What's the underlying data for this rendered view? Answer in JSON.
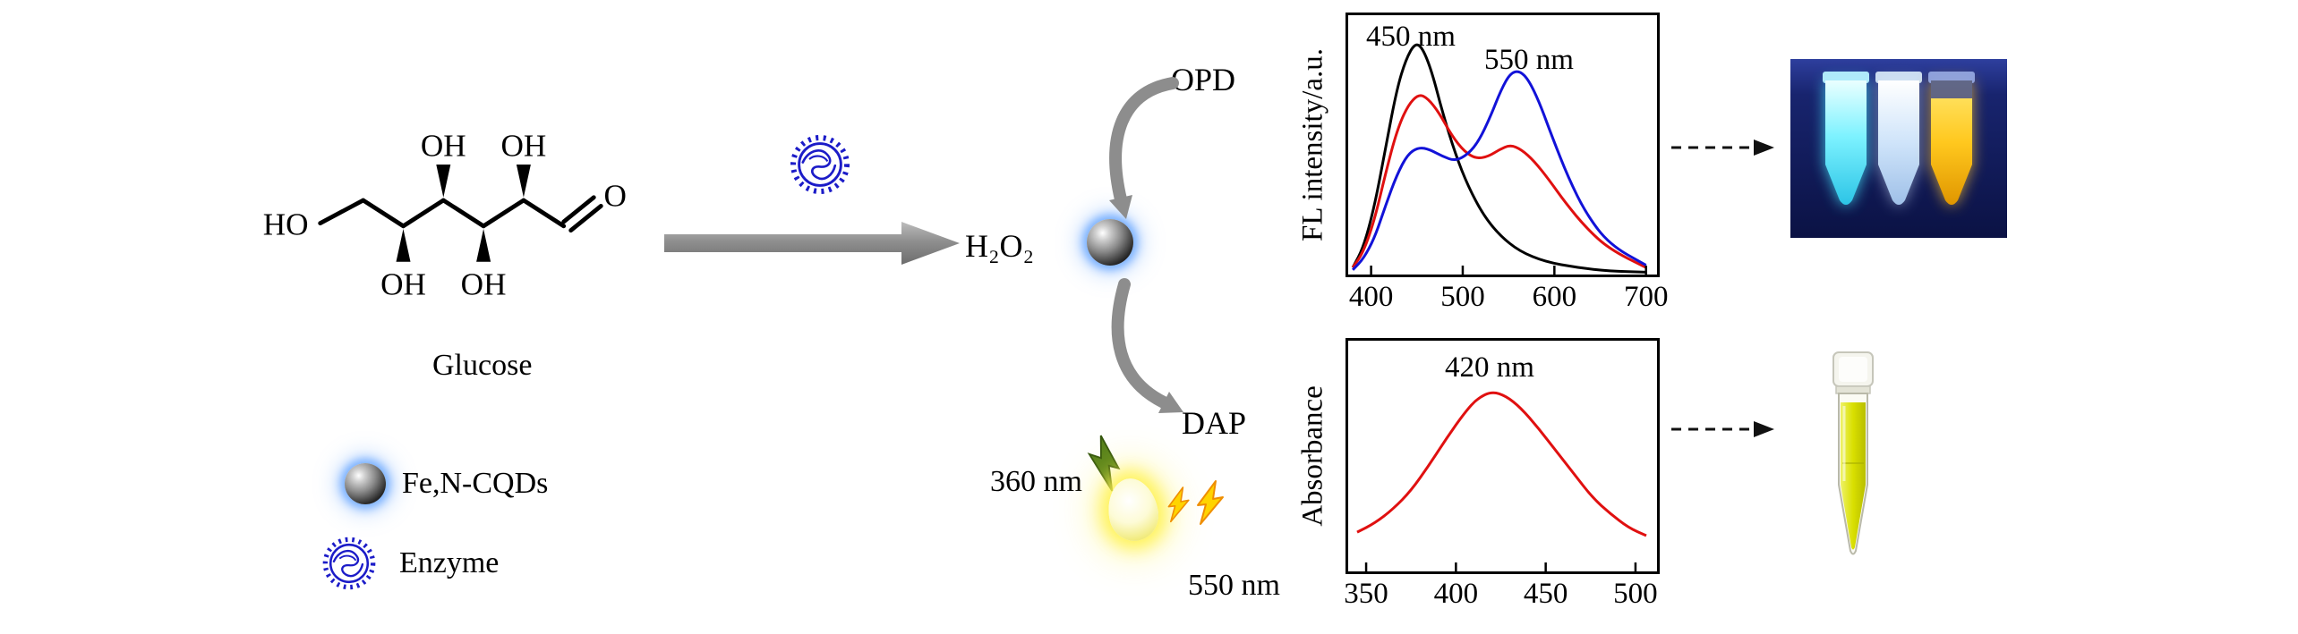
{
  "figure": {
    "molecule": {
      "name": "Glucose",
      "ho": "HO",
      "oh_top": [
        "OH",
        "OH"
      ],
      "oh_bottom": [
        "OH",
        "OH"
      ],
      "aldehyde_o": "O"
    },
    "legend": {
      "cqd_label": "Fe,N-CQDs",
      "enzyme_label": "Enzyme"
    },
    "reaction": {
      "h2o2_label": "H₂O₂",
      "opd_label": "OPD",
      "dap_label": "DAP",
      "excitation_label": "360 nm",
      "emission_label": "550 nm"
    },
    "icons": {
      "cqd_sphere": "black-glossy-sphere-with-blue-glow",
      "enzyme": "blue-spiky-circle-with-scribble",
      "reaction_arrow": "thick-gray-right-arrow",
      "curved_arrows": "gray-curved-swoosh-arrows",
      "uv_bolt": "green-lightning-bolt",
      "emission_bolts": "two-yellow-lightning-bolts",
      "droplet": "glowing-yellow-droplet",
      "dashed_arrows": "black-dashed-right-arrow"
    },
    "colors": {
      "enzyme_blue": "#1c1cc8",
      "glow_blue": "#6eaaff",
      "arrow_gray": "#8d8d8d",
      "uv_background": "#141f66",
      "tube_strong_cyan": "#7df2ff",
      "tube_weak_blue": "#cfe4fa",
      "tube_yellow": "#ffc81e",
      "product_yellow": "#d9df00",
      "bolt_green": "#55801a",
      "bolt_yellow": "#ffd400"
    }
  },
  "chart_data": [
    {
      "type": "line",
      "title": "",
      "xlabel": "",
      "ylabel": "FL intensity/a.u.",
      "xlim": [
        375,
        712
      ],
      "ylim": [
        0,
        1.12
      ],
      "xticks": [
        400,
        500,
        600,
        700
      ],
      "grid": false,
      "legend_position": "none",
      "annotations": [
        {
          "text": "450 nm",
          "x": 450,
          "y": 1.05
        },
        {
          "text": "550 nm",
          "x": 560,
          "y": 1.0
        }
      ],
      "series": [
        {
          "name": "black-curve",
          "color": "#000000",
          "x": [
            380,
            392,
            404,
            416,
            428,
            438,
            448,
            456,
            466,
            478,
            492,
            506,
            522,
            540,
            562,
            590,
            625,
            660,
            700
          ],
          "y": [
            0.03,
            0.12,
            0.3,
            0.55,
            0.8,
            0.93,
            1.0,
            0.98,
            0.88,
            0.7,
            0.52,
            0.38,
            0.26,
            0.17,
            0.1,
            0.055,
            0.03,
            0.015,
            0.01
          ]
        },
        {
          "name": "red-curve",
          "color": "#e01010",
          "x": [
            380,
            392,
            404,
            416,
            428,
            440,
            452,
            462,
            474,
            488,
            502,
            515,
            528,
            540,
            552,
            564,
            578,
            594,
            612,
            635,
            660,
            700
          ],
          "y": [
            0.03,
            0.1,
            0.24,
            0.44,
            0.62,
            0.73,
            0.78,
            0.76,
            0.7,
            0.6,
            0.53,
            0.5,
            0.51,
            0.54,
            0.56,
            0.54,
            0.49,
            0.41,
            0.31,
            0.2,
            0.11,
            0.03
          ]
        },
        {
          "name": "blue-curve",
          "color": "#1212d8",
          "x": [
            380,
            392,
            404,
            416,
            428,
            440,
            452,
            464,
            478,
            492,
            506,
            518,
            530,
            542,
            552,
            562,
            572,
            584,
            598,
            615,
            635,
            660,
            700
          ],
          "y": [
            0.02,
            0.07,
            0.16,
            0.3,
            0.43,
            0.52,
            0.55,
            0.54,
            0.51,
            0.49,
            0.52,
            0.58,
            0.68,
            0.8,
            0.87,
            0.88,
            0.84,
            0.74,
            0.59,
            0.42,
            0.26,
            0.13,
            0.04
          ]
        }
      ]
    },
    {
      "type": "line",
      "title": "",
      "xlabel": "",
      "ylabel": "Absorbance",
      "xlim": [
        340,
        512
      ],
      "ylim": [
        0,
        1.0
      ],
      "xticks": [
        350,
        400,
        450,
        500
      ],
      "grid": false,
      "legend_position": "none",
      "annotations": [
        {
          "text": "420 nm",
          "x": 420,
          "y": 0.92
        }
      ],
      "series": [
        {
          "name": "red-curve",
          "color": "#e01010",
          "x": [
            345,
            355,
            365,
            375,
            385,
            395,
            405,
            412,
            420,
            428,
            436,
            446,
            456,
            466,
            476,
            486,
            496,
            506
          ],
          "y": [
            0.17,
            0.21,
            0.27,
            0.35,
            0.46,
            0.58,
            0.69,
            0.75,
            0.78,
            0.76,
            0.71,
            0.62,
            0.52,
            0.42,
            0.32,
            0.25,
            0.19,
            0.155
          ]
        }
      ]
    }
  ]
}
